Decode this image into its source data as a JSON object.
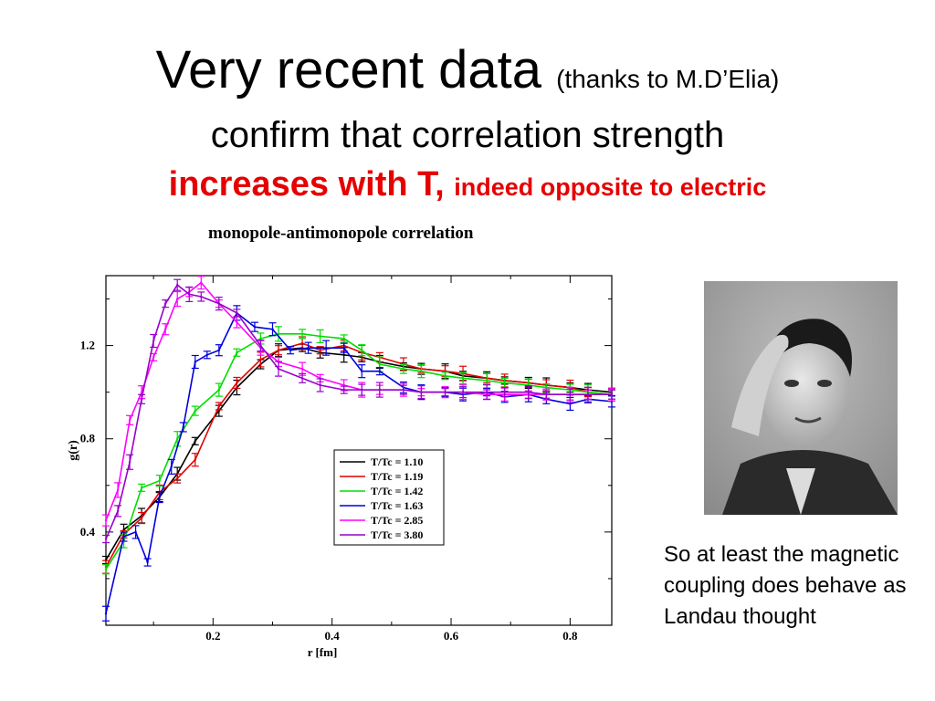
{
  "slide": {
    "title_main": "Very recent data",
    "title_note": "(thanks to M.D’Elia)",
    "line2": "confirm that correlation strength",
    "line3_bold": "increases with T,",
    "line3_small": "indeed opposite to electric",
    "caption": "So at least the magnetic coupling does behave as Landau thought",
    "accent_color": "#e60000"
  },
  "photo": {
    "subject": "portrait photograph",
    "icon": "portrait-photo"
  },
  "chart_data": {
    "type": "line",
    "title": "monopole-antimonopole correlation",
    "xlabel": "r [fm]",
    "ylabel": "g(r)",
    "xlim": [
      0.02,
      0.87
    ],
    "ylim": [
      0.0,
      1.5
    ],
    "xticks": [
      0.2,
      0.4,
      0.6,
      0.8
    ],
    "yticks": [
      0.4,
      0.8,
      1.2
    ],
    "xtick_labels": [
      "0.2",
      "0.4",
      "0.6",
      "0.8"
    ],
    "ytick_labels": [
      "0.4",
      "0.8",
      "1.2"
    ],
    "error_bars": true,
    "grid": false,
    "legend_position": "center",
    "series": [
      {
        "name": "T/Tc = 1.10",
        "color": "#000000",
        "x": [
          0.02,
          0.05,
          0.08,
          0.11,
          0.14,
          0.17,
          0.21,
          0.24,
          0.28,
          0.31,
          0.35,
          0.38,
          0.42,
          0.45,
          0.48,
          0.52,
          0.55,
          0.59,
          0.62,
          0.66,
          0.69,
          0.73,
          0.76,
          0.8,
          0.83,
          0.87
        ],
        "y": [
          0.28,
          0.41,
          0.47,
          0.55,
          0.65,
          0.79,
          0.92,
          1.02,
          1.12,
          1.18,
          1.19,
          1.17,
          1.16,
          1.15,
          1.13,
          1.11,
          1.1,
          1.09,
          1.07,
          1.06,
          1.05,
          1.04,
          1.03,
          1.02,
          1.01,
          1.0
        ]
      },
      {
        "name": "T/Tc = 1.19",
        "color": "#e00000",
        "x": [
          0.02,
          0.05,
          0.08,
          0.11,
          0.14,
          0.17,
          0.21,
          0.24,
          0.28,
          0.31,
          0.35,
          0.38,
          0.42,
          0.45,
          0.48,
          0.52,
          0.55,
          0.59,
          0.62,
          0.66,
          0.69,
          0.73,
          0.76,
          0.8,
          0.83,
          0.87
        ],
        "y": [
          0.25,
          0.39,
          0.46,
          0.57,
          0.63,
          0.71,
          0.94,
          1.04,
          1.14,
          1.18,
          1.21,
          1.18,
          1.2,
          1.17,
          1.15,
          1.12,
          1.1,
          1.09,
          1.08,
          1.06,
          1.05,
          1.04,
          1.03,
          1.02,
          1.0,
          0.99
        ]
      },
      {
        "name": "T/Tc = 1.42",
        "color": "#00dd00",
        "x": [
          0.02,
          0.05,
          0.08,
          0.11,
          0.14,
          0.17,
          0.21,
          0.24,
          0.28,
          0.31,
          0.35,
          0.38,
          0.42,
          0.45,
          0.48,
          0.52,
          0.55,
          0.59,
          0.62,
          0.66,
          0.69,
          0.73,
          0.76,
          0.8,
          0.83,
          0.87
        ],
        "y": [
          0.24,
          0.36,
          0.59,
          0.62,
          0.8,
          0.92,
          1.01,
          1.17,
          1.23,
          1.25,
          1.25,
          1.24,
          1.23,
          1.18,
          1.12,
          1.1,
          1.09,
          1.07,
          1.06,
          1.05,
          1.04,
          1.03,
          1.02,
          1.01,
          1.0,
          0.99
        ]
      },
      {
        "name": "T/Tc = 1.63",
        "color": "#0000dd",
        "x": [
          0.02,
          0.05,
          0.07,
          0.09,
          0.11,
          0.13,
          0.15,
          0.17,
          0.19,
          0.21,
          0.24,
          0.27,
          0.3,
          0.33,
          0.36,
          0.39,
          0.42,
          0.45,
          0.48,
          0.52,
          0.55,
          0.59,
          0.62,
          0.66,
          0.69,
          0.73,
          0.76,
          0.8,
          0.83,
          0.87
        ],
        "y": [
          0.05,
          0.38,
          0.4,
          0.27,
          0.55,
          0.68,
          0.85,
          1.13,
          1.16,
          1.18,
          1.34,
          1.28,
          1.27,
          1.18,
          1.19,
          1.19,
          1.19,
          1.09,
          1.09,
          1.02,
          1.0,
          1.0,
          0.99,
          1.0,
          0.98,
          0.99,
          0.97,
          0.95,
          0.97,
          0.96
        ]
      },
      {
        "name": "T/Tc = 2.85",
        "color": "#ff00ff",
        "x": [
          0.02,
          0.04,
          0.06,
          0.08,
          0.1,
          0.12,
          0.14,
          0.16,
          0.18,
          0.21,
          0.24,
          0.28,
          0.31,
          0.35,
          0.38,
          0.42,
          0.45,
          0.48,
          0.52,
          0.55,
          0.59,
          0.62,
          0.66,
          0.69,
          0.73,
          0.76,
          0.8,
          0.83,
          0.87
        ],
        "y": [
          0.45,
          0.58,
          0.88,
          1.0,
          1.15,
          1.27,
          1.4,
          1.43,
          1.47,
          1.38,
          1.3,
          1.19,
          1.13,
          1.1,
          1.06,
          1.03,
          1.01,
          1.01,
          1.01,
          1.0,
          1.0,
          1.0,
          0.99,
          0.99,
          0.99,
          0.99,
          0.99,
          0.99,
          0.99
        ]
      },
      {
        "name": "T/Tc = 3.80",
        "color": "#9900cc",
        "x": [
          0.02,
          0.04,
          0.06,
          0.08,
          0.1,
          0.12,
          0.14,
          0.16,
          0.18,
          0.21,
          0.24,
          0.28,
          0.31,
          0.35,
          0.38,
          0.42,
          0.45,
          0.48,
          0.52,
          0.55,
          0.59,
          0.62,
          0.66,
          0.69,
          0.73,
          0.76,
          0.8,
          0.83,
          0.87
        ],
        "y": [
          0.37,
          0.49,
          0.7,
          0.97,
          1.22,
          1.38,
          1.46,
          1.42,
          1.41,
          1.38,
          1.34,
          1.2,
          1.1,
          1.06,
          1.03,
          1.01,
          1.01,
          1.01,
          1.01,
          1.0,
          1.0,
          1.0,
          1.0,
          1.0,
          1.0,
          0.99,
          0.99,
          0.99,
          0.99
        ]
      }
    ]
  }
}
